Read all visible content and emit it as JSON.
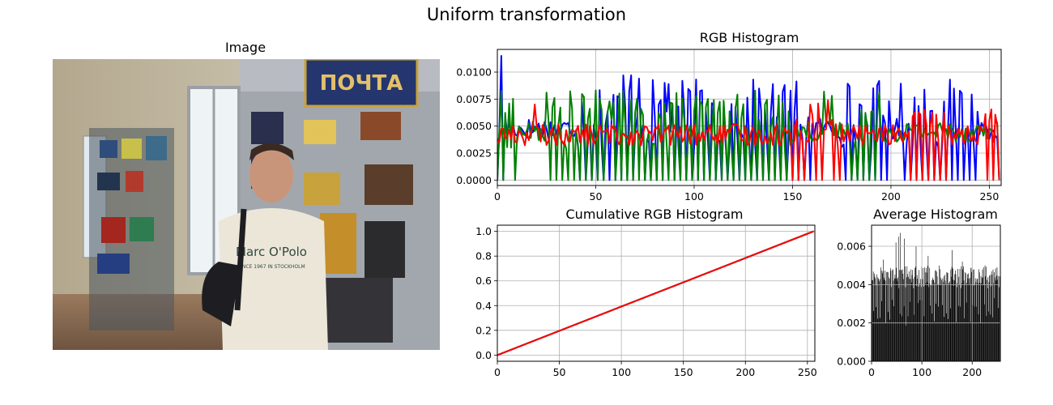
{
  "figure": {
    "suptitle": "Uniform transformation"
  },
  "image_panel": {
    "title": "Image",
    "sign_text": "ПОЧТА",
    "sweater_text": "Marc O'Polo",
    "sweater_subtext": "SINCE 1967 IN STOCKHOLM"
  },
  "chart_data": [
    {
      "id": "rgb_hist",
      "type": "line",
      "title": "RGB Histogram",
      "xlim": [
        0,
        256
      ],
      "ylim": [
        -0.0005,
        0.0121
      ],
      "xticks": [
        0,
        50,
        100,
        150,
        200,
        250
      ],
      "yticks": [
        0.0,
        0.0025,
        0.005,
        0.0075,
        0.01
      ],
      "yticklabels": [
        "0.0000",
        "0.0025",
        "0.0050",
        "0.0075",
        "0.0100"
      ],
      "grid": true,
      "series": [
        {
          "color": "#0000ff",
          "peaks": [
            [
              2,
              0.0115
            ],
            [
              64,
              0.0097
            ],
            [
              68,
              0.0097
            ],
            [
              72,
              0.0094
            ],
            [
              85,
              0.009
            ],
            [
              87,
              0.0089
            ]
          ]
        },
        {
          "color": "#008000",
          "peaks": [
            [
              6,
              0.0071
            ],
            [
              57,
              0.0073
            ],
            [
              59,
              0.0072
            ],
            [
              166,
              0.0082
            ],
            [
              170,
              0.0078
            ]
          ]
        },
        {
          "color": "#ff0000",
          "peaks": [
            [
              19,
              0.007
            ],
            [
              152,
              0.0056
            ],
            [
              159,
              0.007
            ],
            [
              163,
              0.0071
            ],
            [
              168,
              0.0074
            ]
          ]
        }
      ]
    },
    {
      "id": "cum_hist",
      "type": "line",
      "title": "Cumulative RGB Histogram",
      "xlim": [
        0,
        256
      ],
      "ylim": [
        -0.05,
        1.05
      ],
      "xticks": [
        0,
        50,
        100,
        150,
        200,
        250
      ],
      "yticks": [
        0.0,
        0.2,
        0.4,
        0.6,
        0.8,
        1.0
      ],
      "yticklabels": [
        "0.0",
        "0.2",
        "0.4",
        "0.6",
        "0.8",
        "1.0"
      ],
      "grid": true,
      "series": [
        {
          "color": "#0000ff",
          "x": [
            0,
            255
          ],
          "y": [
            0.0,
            1.0
          ]
        },
        {
          "color": "#008000",
          "x": [
            0,
            255
          ],
          "y": [
            0.0,
            1.0
          ]
        },
        {
          "color": "#ff0000",
          "x": [
            0,
            255
          ],
          "y": [
            0.0,
            1.0
          ]
        }
      ]
    },
    {
      "id": "avg_hist",
      "type": "bar",
      "title": "Average Histogram",
      "xlim": [
        0,
        256
      ],
      "ylim": [
        0,
        0.0071
      ],
      "xticks": [
        0,
        100,
        200
      ],
      "yticks": [
        0.0,
        0.002,
        0.004,
        0.006
      ],
      "yticklabels": [
        "0.000",
        "0.002",
        "0.004",
        "0.006"
      ],
      "grid": true,
      "color": "#000000",
      "peaks": [
        [
          23,
          0.0053
        ],
        [
          48,
          0.0062
        ],
        [
          53,
          0.0065
        ],
        [
          57,
          0.0067
        ],
        [
          65,
          0.0064
        ],
        [
          88,
          0.006
        ],
        [
          112,
          0.0055
        ],
        [
          160,
          0.0058
        ],
        [
          180,
          0.0052
        ],
        [
          225,
          0.005
        ]
      ]
    }
  ]
}
